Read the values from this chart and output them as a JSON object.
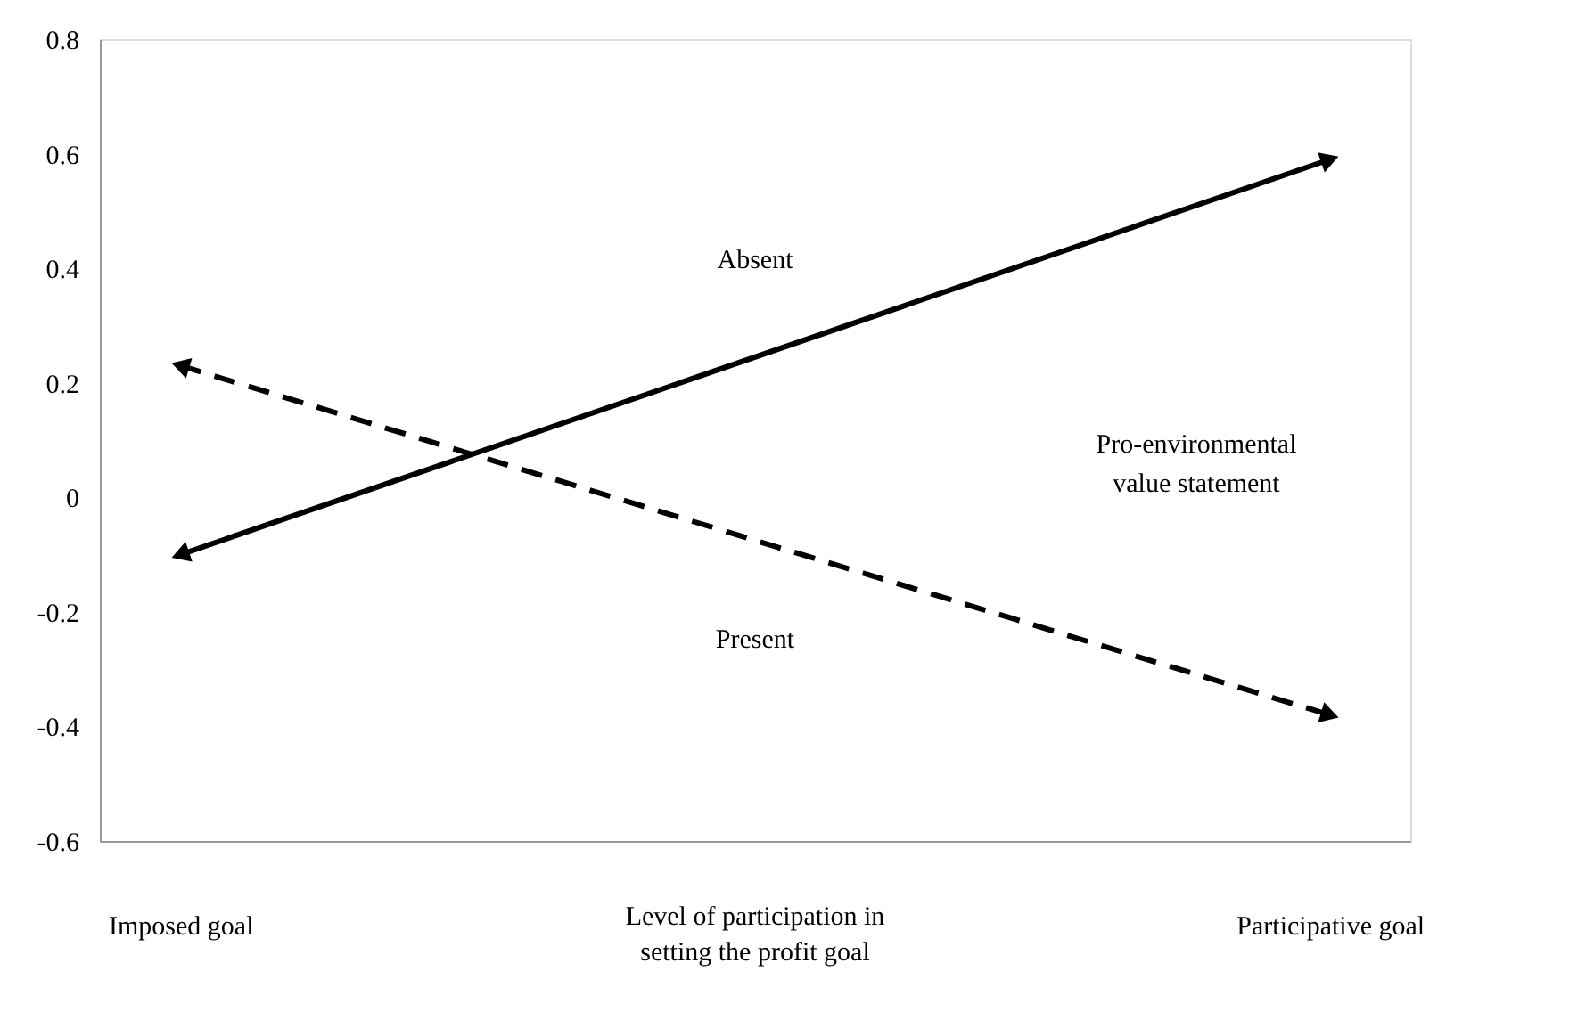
{
  "chart_data": {
    "type": "line",
    "categories": [
      "Imposed goal",
      "Participative goal"
    ],
    "xlabel": "Level of participation in setting the profit goal",
    "legend_title": "Pro-environmental value statement",
    "series": [
      {
        "name": "Absent",
        "color": "#000000",
        "values": [
          -0.1,
          0.59
        ],
        "line_style": "solid"
      },
      {
        "name": "Present",
        "color": "#000000",
        "values": [
          0.23,
          -0.38
        ],
        "line_style": "dashed"
      }
    ],
    "ylim": [
      -0.6,
      0.8
    ],
    "yticks": [
      -0.6,
      -0.4,
      -0.2,
      0,
      0.2,
      0.4,
      0.6,
      0.8
    ],
    "grid": false,
    "marker": "triangle"
  }
}
